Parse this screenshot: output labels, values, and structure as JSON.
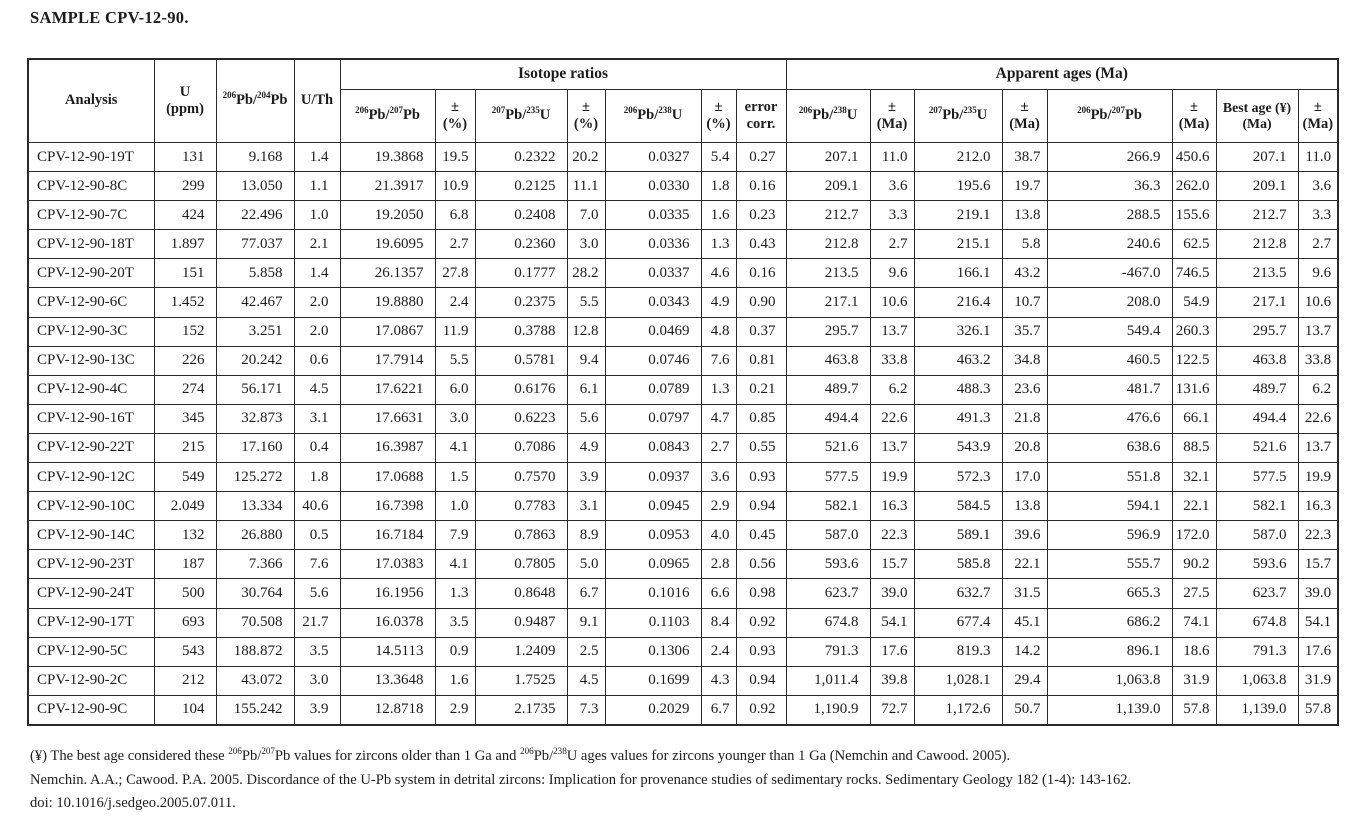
{
  "page": {
    "title": "SAMPLE CPV-12-90."
  },
  "colors": {
    "text": "#1c1c1c",
    "border": "#2a2a2a",
    "background": "#ffffff"
  },
  "table": {
    "group_headers": {
      "isotope_ratios": "Isotope ratios",
      "apparent_ages": "Apparent ages (Ma)"
    },
    "columns": [
      {
        "key": "analysis",
        "label": "Analysis"
      },
      {
        "key": "u-ppm",
        "label": "U\n(ppm)"
      },
      {
        "key": "pb206-pb204",
        "label": "^206^Pb/^204^Pb"
      },
      {
        "key": "u-th",
        "label": "U/Th"
      },
      {
        "key": "ratio-pb206-pb207",
        "label": "^206^Pb/^207^Pb"
      },
      {
        "key": "ratio-err1",
        "label": "±\n(%)"
      },
      {
        "key": "ratio-pb207-u235",
        "label": "^207^Pb/^235^U"
      },
      {
        "key": "ratio-err2",
        "label": "±\n(%)"
      },
      {
        "key": "ratio-pb206-u238",
        "label": "^206^Pb/^238^U"
      },
      {
        "key": "ratio-err3",
        "label": "±\n(%)"
      },
      {
        "key": "error-corr",
        "label": "error\ncorr."
      },
      {
        "key": "age-pb206-u238",
        "label": "^206^Pb/^238^U"
      },
      {
        "key": "age-err1",
        "label": "±\n(Ma)"
      },
      {
        "key": "age-pb207-u235",
        "label": "^207^Pb/^235^U"
      },
      {
        "key": "age-err2",
        "label": "±\n(Ma)"
      },
      {
        "key": "age-pb206-pb207",
        "label": "^206^Pb/^207^Pb"
      },
      {
        "key": "age-err3",
        "label": "±\n(Ma)"
      },
      {
        "key": "best-age",
        "label": "Best age (¥)\n(Ma)"
      },
      {
        "key": "best-age-err",
        "label": "±\n(Ma)"
      }
    ],
    "rows": [
      [
        "CPV-12-90-19T",
        "131",
        "9.168",
        "1.4",
        "19.3868",
        "19.5",
        "0.2322",
        "20.2",
        "0.0327",
        "5.4",
        "0.27",
        "207.1",
        "11.0",
        "212.0",
        "38.7",
        "266.9",
        "450.6",
        "207.1",
        "11.0"
      ],
      [
        "CPV-12-90-8C",
        "299",
        "13.050",
        "1.1",
        "21.3917",
        "10.9",
        "0.2125",
        "11.1",
        "0.0330",
        "1.8",
        "0.16",
        "209.1",
        "3.6",
        "195.6",
        "19.7",
        "36.3",
        "262.0",
        "209.1",
        "3.6"
      ],
      [
        "CPV-12-90-7C",
        "424",
        "22.496",
        "1.0",
        "19.2050",
        "6.8",
        "0.2408",
        "7.0",
        "0.0335",
        "1.6",
        "0.23",
        "212.7",
        "3.3",
        "219.1",
        "13.8",
        "288.5",
        "155.6",
        "212.7",
        "3.3"
      ],
      [
        "CPV-12-90-18T",
        "1.897",
        "77.037",
        "2.1",
        "19.6095",
        "2.7",
        "0.2360",
        "3.0",
        "0.0336",
        "1.3",
        "0.43",
        "212.8",
        "2.7",
        "215.1",
        "5.8",
        "240.6",
        "62.5",
        "212.8",
        "2.7"
      ],
      [
        "CPV-12-90-20T",
        "151",
        "5.858",
        "1.4",
        "26.1357",
        "27.8",
        "0.1777",
        "28.2",
        "0.0337",
        "4.6",
        "0.16",
        "213.5",
        "9.6",
        "166.1",
        "43.2",
        "-467.0",
        "746.5",
        "213.5",
        "9.6"
      ],
      [
        "CPV-12-90-6C",
        "1.452",
        "42.467",
        "2.0",
        "19.8880",
        "2.4",
        "0.2375",
        "5.5",
        "0.0343",
        "4.9",
        "0.90",
        "217.1",
        "10.6",
        "216.4",
        "10.7",
        "208.0",
        "54.9",
        "217.1",
        "10.6"
      ],
      [
        "CPV-12-90-3C",
        "152",
        "3.251",
        "2.0",
        "17.0867",
        "11.9",
        "0.3788",
        "12.8",
        "0.0469",
        "4.8",
        "0.37",
        "295.7",
        "13.7",
        "326.1",
        "35.7",
        "549.4",
        "260.3",
        "295.7",
        "13.7"
      ],
      [
        "CPV-12-90-13C",
        "226",
        "20.242",
        "0.6",
        "17.7914",
        "5.5",
        "0.5781",
        "9.4",
        "0.0746",
        "7.6",
        "0.81",
        "463.8",
        "33.8",
        "463.2",
        "34.8",
        "460.5",
        "122.5",
        "463.8",
        "33.8"
      ],
      [
        "CPV-12-90-4C",
        "274",
        "56.171",
        "4.5",
        "17.6221",
        "6.0",
        "0.6176",
        "6.1",
        "0.0789",
        "1.3",
        "0.21",
        "489.7",
        "6.2",
        "488.3",
        "23.6",
        "481.7",
        "131.6",
        "489.7",
        "6.2"
      ],
      [
        "CPV-12-90-16T",
        "345",
        "32.873",
        "3.1",
        "17.6631",
        "3.0",
        "0.6223",
        "5.6",
        "0.0797",
        "4.7",
        "0.85",
        "494.4",
        "22.6",
        "491.3",
        "21.8",
        "476.6",
        "66.1",
        "494.4",
        "22.6"
      ],
      [
        "CPV-12-90-22T",
        "215",
        "17.160",
        "0.4",
        "16.3987",
        "4.1",
        "0.7086",
        "4.9",
        "0.0843",
        "2.7",
        "0.55",
        "521.6",
        "13.7",
        "543.9",
        "20.8",
        "638.6",
        "88.5",
        "521.6",
        "13.7"
      ],
      [
        "CPV-12-90-12C",
        "549",
        "125.272",
        "1.8",
        "17.0688",
        "1.5",
        "0.7570",
        "3.9",
        "0.0937",
        "3.6",
        "0.93",
        "577.5",
        "19.9",
        "572.3",
        "17.0",
        "551.8",
        "32.1",
        "577.5",
        "19.9"
      ],
      [
        "CPV-12-90-10C",
        "2.049",
        "13.334",
        "40.6",
        "16.7398",
        "1.0",
        "0.7783",
        "3.1",
        "0.0945",
        "2.9",
        "0.94",
        "582.1",
        "16.3",
        "584.5",
        "13.8",
        "594.1",
        "22.1",
        "582.1",
        "16.3"
      ],
      [
        "CPV-12-90-14C",
        "132",
        "26.880",
        "0.5",
        "16.7184",
        "7.9",
        "0.7863",
        "8.9",
        "0.0953",
        "4.0",
        "0.45",
        "587.0",
        "22.3",
        "589.1",
        "39.6",
        "596.9",
        "172.0",
        "587.0",
        "22.3"
      ],
      [
        "CPV-12-90-23T",
        "187",
        "7.366",
        "7.6",
        "17.0383",
        "4.1",
        "0.7805",
        "5.0",
        "0.0965",
        "2.8",
        "0.56",
        "593.6",
        "15.7",
        "585.8",
        "22.1",
        "555.7",
        "90.2",
        "593.6",
        "15.7"
      ],
      [
        "CPV-12-90-24T",
        "500",
        "30.764",
        "5.6",
        "16.1956",
        "1.3",
        "0.8648",
        "6.7",
        "0.1016",
        "6.6",
        "0.98",
        "623.7",
        "39.0",
        "632.7",
        "31.5",
        "665.3",
        "27.5",
        "623.7",
        "39.0"
      ],
      [
        "CPV-12-90-17T",
        "693",
        "70.508",
        "21.7",
        "16.0378",
        "3.5",
        "0.9487",
        "9.1",
        "0.1103",
        "8.4",
        "0.92",
        "674.8",
        "54.1",
        "677.4",
        "45.1",
        "686.2",
        "74.1",
        "674.8",
        "54.1"
      ],
      [
        "CPV-12-90-5C",
        "543",
        "188.872",
        "3.5",
        "14.5113",
        "0.9",
        "1.2409",
        "2.5",
        "0.1306",
        "2.4",
        "0.93",
        "791.3",
        "17.6",
        "819.3",
        "14.2",
        "896.1",
        "18.6",
        "791.3",
        "17.6"
      ],
      [
        "CPV-12-90-2C",
        "212",
        "43.072",
        "3.0",
        "13.3648",
        "1.6",
        "1.7525",
        "4.5",
        "0.1699",
        "4.3",
        "0.94",
        "1,011.4",
        "39.8",
        "1,028.1",
        "29.4",
        "1,063.8",
        "31.9",
        "1,063.8",
        "31.9"
      ],
      [
        "CPV-12-90-9C",
        "104",
        "155.242",
        "3.9",
        "12.8718",
        "2.9",
        "2.1735",
        "7.3",
        "0.2029",
        "6.7",
        "0.92",
        "1,190.9",
        "72.7",
        "1,172.6",
        "50.7",
        "1,139.0",
        "57.8",
        "1,139.0",
        "57.8"
      ]
    ]
  },
  "footnotes": {
    "line1": "(¥) The best age considered these ^206^Pb/^207^Pb values for zircons older than 1 Ga and ^206^Pb/^238^U ages values for zircons younger than 1 Ga (Nemchin and Cawood. 2005).",
    "line2": "Nemchin. A.A.; Cawood. P.A. 2005. Discordance of the U-Pb system in detrital zircons: Implication for provenance studies of sedimentary rocks. Sedimentary Geology 182 (1-4): 143-162.",
    "line3": "doi: 10.1016/j.sedgeo.2005.07.011."
  }
}
